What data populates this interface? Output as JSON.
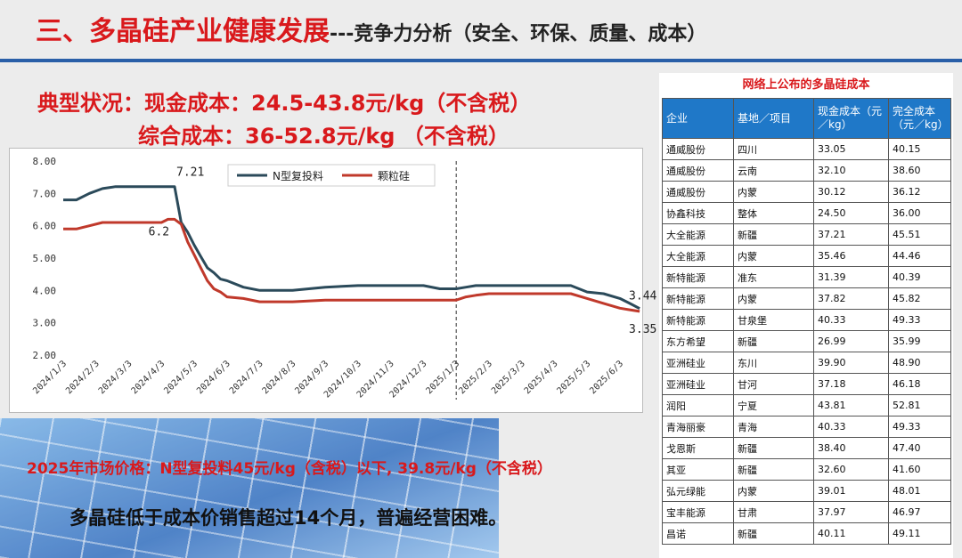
{
  "slide": {
    "title_main": "三、多晶硅产业健康发展",
    "title_sub": "---竞争力分析（安全、环保、质量、成本）",
    "headline_1": "典型状况：现金成本：24.5-43.8元/kg（不含税）",
    "headline_2": "综合成本：36-52.8元/kg （不含税）",
    "price_note": "2025年市场价格：N型复投料45元/kg（含税）以下, 39.8元/kg（不含税）",
    "conclusion": "多晶硅低于成本价销售超过14个月，普遍经营困难。"
  },
  "chart_data": {
    "type": "line",
    "title": "",
    "xlabel": "",
    "ylabel": "",
    "ylim": [
      2.0,
      8.0
    ],
    "yticks": [
      "2.00",
      "3.00",
      "4.00",
      "5.00",
      "6.00",
      "7.00",
      "8.00"
    ],
    "xticks": [
      "2024/1/3",
      "2024/2/3",
      "2024/3/3",
      "2024/4/3",
      "2024/5/3",
      "2024/6/3",
      "2024/7/3",
      "2024/8/3",
      "2024/9/3",
      "2024/10/3",
      "2024/11/3",
      "2024/12/3",
      "2025/1/3",
      "2025/2/3",
      "2025/3/3",
      "2025/4/3",
      "2025/5/3",
      "2025/6/3"
    ],
    "x": [
      0,
      0.4,
      0.8,
      1.2,
      1.6,
      2,
      2.5,
      3,
      3.2,
      3.4,
      3.6,
      3.8,
      4,
      4.2,
      4.4,
      4.6,
      4.8,
      5,
      5.5,
      6,
      6.5,
      7,
      8,
      9,
      10,
      11,
      11.5,
      12,
      12.3,
      12.6,
      13,
      14,
      15,
      15.5,
      16,
      16.5,
      17,
      17.3,
      17.6
    ],
    "series": [
      {
        "name": "N型复投料",
        "color": "#2b4a5a",
        "values": [
          6.8,
          6.8,
          7.0,
          7.15,
          7.21,
          7.21,
          7.21,
          7.21,
          7.21,
          7.21,
          6.1,
          5.8,
          5.4,
          5.05,
          4.7,
          4.55,
          4.35,
          4.3,
          4.1,
          4.0,
          4.0,
          4.0,
          4.1,
          4.15,
          4.15,
          4.15,
          4.05,
          4.05,
          4.1,
          4.15,
          4.15,
          4.15,
          4.15,
          4.15,
          3.95,
          3.9,
          3.75,
          3.6,
          3.44
        ]
      },
      {
        "name": "颗粒硅",
        "color": "#c0392b",
        "values": [
          5.9,
          5.9,
          6.0,
          6.1,
          6.1,
          6.1,
          6.1,
          6.1,
          6.2,
          6.2,
          6.05,
          5.5,
          5.1,
          4.7,
          4.3,
          4.05,
          3.95,
          3.8,
          3.75,
          3.65,
          3.65,
          3.65,
          3.7,
          3.7,
          3.7,
          3.7,
          3.7,
          3.7,
          3.8,
          3.85,
          3.9,
          3.9,
          3.9,
          3.9,
          3.75,
          3.6,
          3.45,
          3.4,
          3.35
        ]
      }
    ],
    "annotations": [
      {
        "text": "7.21",
        "x": 3.4,
        "y": 7.21
      },
      {
        "text": "6.2",
        "x": 3.2,
        "y": 6.2
      },
      {
        "text": "3.44",
        "x": 17.6,
        "y": 3.44
      },
      {
        "text": "3.35",
        "x": 17.6,
        "y": 3.35
      }
    ],
    "vline_x": 12.0,
    "grid": false,
    "legend": "top-center"
  },
  "table": {
    "title": "网络上公布的多晶硅成本",
    "headers": [
      "企业",
      "基地／项目",
      "现金成本（元／kg）",
      "完全成本（元／kg）"
    ],
    "rows": [
      [
        "通威股份",
        "四川",
        "33.05",
        "40.15"
      ],
      [
        "通威股份",
        "云南",
        "32.10",
        "38.60"
      ],
      [
        "通威股份",
        "内蒙",
        "30.12",
        "36.12"
      ],
      [
        "协鑫科技",
        "整体",
        "24.50",
        "36.00"
      ],
      [
        "大全能源",
        "新疆",
        "37.21",
        "45.51"
      ],
      [
        "大全能源",
        "内蒙",
        "35.46",
        "44.46"
      ],
      [
        "新特能源",
        "准东",
        "31.39",
        "40.39"
      ],
      [
        "新特能源",
        "内蒙",
        "37.82",
        "45.82"
      ],
      [
        "新特能源",
        "甘泉堡",
        "40.33",
        "49.33"
      ],
      [
        "东方希望",
        "新疆",
        "26.99",
        "35.99"
      ],
      [
        "亚洲硅业",
        "东川",
        "39.90",
        "48.90"
      ],
      [
        "亚洲硅业",
        "甘河",
        "37.18",
        "46.18"
      ],
      [
        "润阳",
        "宁夏",
        "43.81",
        "52.81"
      ],
      [
        "青海丽豪",
        "青海",
        "40.33",
        "49.33"
      ],
      [
        "戈恩斯",
        "新疆",
        "38.40",
        "47.40"
      ],
      [
        "其亚",
        "新疆",
        "32.60",
        "41.60"
      ],
      [
        "弘元绿能",
        "内蒙",
        "39.01",
        "48.01"
      ],
      [
        "宝丰能源",
        "甘肃",
        "37.97",
        "46.97"
      ],
      [
        "昌诺",
        "新疆",
        "40.11",
        "49.11"
      ]
    ]
  }
}
